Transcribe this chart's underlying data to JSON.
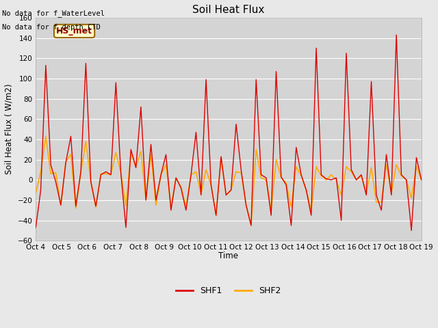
{
  "title": "Soil Heat Flux",
  "ylabel": "Soil Heat Flux ( W/m2)",
  "xlabel": "Time",
  "ylim": [
    -60,
    160
  ],
  "background_color": "#e8e8e8",
  "plot_bg_color": "#d4d4d4",
  "grid_color": "#ffffff",
  "shf1_color": "#dd0000",
  "shf2_color": "#ffaa00",
  "top_left_text1": "No data for f_WaterLevel",
  "top_left_text2": "No data for f_depth_CTD",
  "legend_box_label": "HS_met",
  "legend_box_facecolor": "#ffffcc",
  "legend_box_edgecolor": "#996600",
  "legend_box_textcolor": "#990000",
  "xtick_labels": [
    "Oct 4",
    "Oct 5",
    "Oct 6",
    "Oct 7",
    "Oct 8",
    "Oct 9",
    "Oct 10",
    "Oct 11",
    "Oct 12",
    "Oct 13",
    "Oct 14",
    "Oct 15",
    "Oct 16",
    "Oct 17",
    "Oct 18",
    "Oct 19"
  ],
  "ytick_labels": [
    "-60",
    "-40",
    "-20",
    "0",
    "20",
    "40",
    "60",
    "80",
    "100",
    "120",
    "140",
    "160"
  ],
  "ytick_values": [
    -60,
    -40,
    -20,
    0,
    20,
    40,
    60,
    80,
    100,
    120,
    140,
    160
  ],
  "shf1_y": [
    -47,
    -10,
    113,
    15,
    -2,
    -25,
    17,
    43,
    -26,
    8,
    115,
    -2,
    -26,
    5,
    8,
    5,
    96,
    6,
    -47,
    30,
    12,
    72,
    -20,
    35,
    -20,
    5,
    25,
    -30,
    2,
    -8,
    -30,
    5,
    47,
    -15,
    99,
    -5,
    -35,
    23,
    -15,
    -10,
    55,
    10,
    -25,
    -45,
    99,
    5,
    2,
    -35,
    107,
    3,
    -5,
    -45,
    32,
    5,
    -10,
    -35,
    130,
    5,
    1,
    0,
    2,
    -40,
    125,
    10,
    0,
    5,
    -15,
    97,
    -15,
    -30,
    25,
    -15,
    143,
    5,
    0,
    -50,
    22,
    0
  ],
  "shf2_y": [
    -13,
    8,
    43,
    6,
    7,
    -25,
    18,
    25,
    -28,
    7,
    38,
    -2,
    -27,
    6,
    6,
    5,
    27,
    7,
    -26,
    27,
    13,
    28,
    -20,
    25,
    -25,
    5,
    15,
    -27,
    2,
    -7,
    -27,
    5,
    8,
    -14,
    10,
    -5,
    -35,
    22,
    -15,
    -10,
    8,
    7,
    -25,
    -45,
    30,
    2,
    0,
    -30,
    20,
    2,
    -3,
    -27,
    13,
    4,
    -10,
    -30,
    13,
    4,
    0,
    5,
    0,
    -15,
    13,
    8,
    0,
    4,
    -13,
    12,
    -22,
    -22,
    15,
    -13,
    15,
    4,
    0,
    -18,
    13,
    0
  ]
}
